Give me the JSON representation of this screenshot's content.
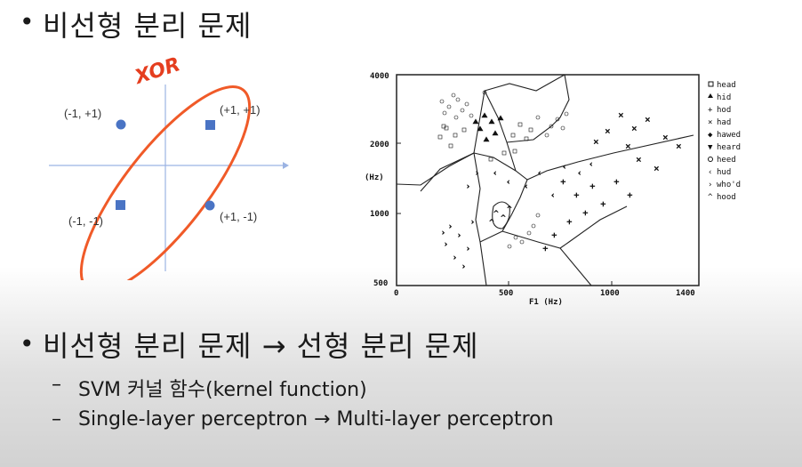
{
  "slide": {
    "title": "비선형 분리 문제",
    "bullet2": "비선형 분리 문제 → 선형 분리 문제",
    "sub1": "SVM 커널 함수(kernel function)",
    "sub2": "Single-layer perceptron → Multi-layer perceptron"
  },
  "xor_plot": {
    "annotation": "XOR",
    "points": [
      {
        "label": "(-1, +1)",
        "shape": "circle"
      },
      {
        "label": "(+1, +1)",
        "shape": "square"
      },
      {
        "label": "(-1, -1)",
        "shape": "square"
      },
      {
        "label": "(+1, -1)",
        "shape": "circle"
      }
    ],
    "colors": {
      "marker": "#4a74c4",
      "ellipse": "#f05a28",
      "axis": "#9bb3e3"
    }
  },
  "vowel_plot": {
    "y_ticks": [
      "4000",
      "2000",
      "1000",
      "500"
    ],
    "y_label": "(Hz)",
    "x_ticks": [
      "0",
      "500",
      "1000",
      "1400"
    ],
    "x_label": "F1 (Hz)",
    "legend": [
      "head",
      "hid",
      "hod",
      "had",
      "hawed",
      "heard",
      "heed",
      "hud",
      "who'd",
      "hood"
    ]
  }
}
